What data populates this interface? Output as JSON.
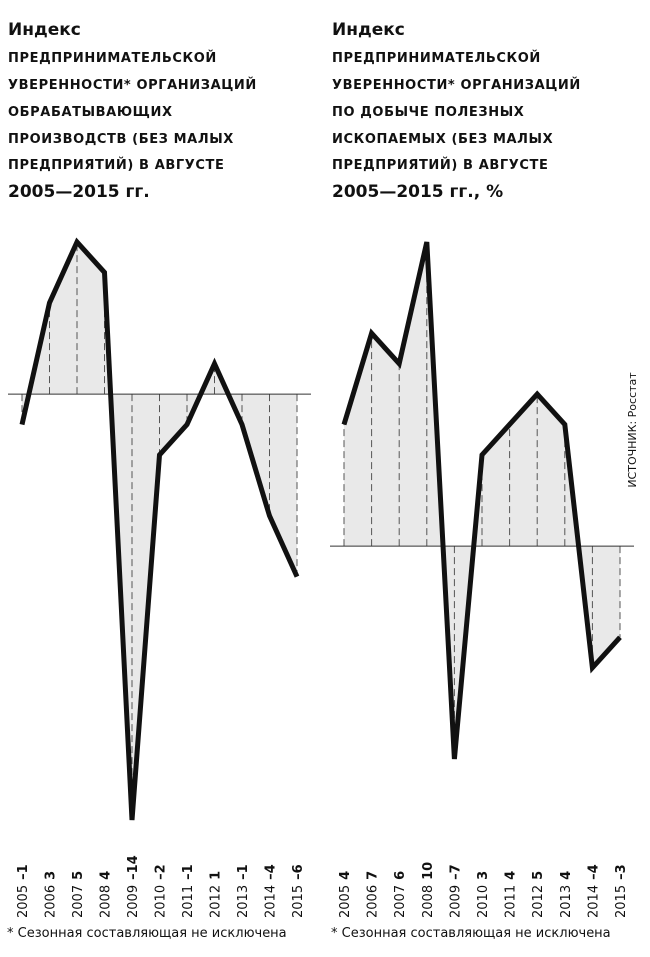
{
  "source": "ИСТОЧНИК: Росстат",
  "chart_data": [
    {
      "type": "line",
      "title": [
        "Индекс",
        "ПРЕДПРИНИМАТЕЛЬСКОЙ",
        "УВЕРЕННОСТИ* ОРГАНИЗАЦИЙ",
        "ОБРАБАТЫВАЮЩИХ",
        "ПРОИЗВОДСТВ (БЕЗ МАЛЫХ",
        "ПРЕДПРИЯТИЙ) В АВГУСТЕ",
        "2005—2015 гг."
      ],
      "categories": [
        "2005",
        "2006",
        "2007",
        "2008",
        "2009",
        "2010",
        "2011",
        "2012",
        "2013",
        "2014",
        "2015"
      ],
      "values": [
        -1,
        3,
        5,
        4,
        -14,
        -2,
        -1,
        1,
        -1,
        -4,
        -6
      ],
      "value_labels": [
        "–1",
        "3",
        "5",
        "4",
        "–14",
        "–2",
        "–1",
        "1",
        "–1",
        "–4",
        "–6"
      ],
      "ylim": [
        -14,
        5
      ],
      "color": "#111111",
      "footnote": "* Сезонная составляющая не исключена"
    },
    {
      "type": "line",
      "title": [
        "Индекс",
        "ПРЕДПРИНИМАТЕЛЬСКОЙ",
        "УВЕРЕННОСТИ* ОРГАНИЗАЦИЙ",
        "ПО ДОБЫЧЕ ПОЛЕЗНЫХ",
        "ИСКОПАЕМЫХ (БЕЗ МАЛЫХ",
        "ПРЕДПРИЯТИЙ) В АВГУСТЕ",
        "2005—2015 гг., %"
      ],
      "categories": [
        "2005",
        "2006",
        "2007",
        "2008",
        "2009",
        "2010",
        "2011",
        "2012",
        "2013",
        "2014",
        "2015"
      ],
      "values": [
        4,
        7,
        6,
        10,
        -7,
        3,
        4,
        5,
        4,
        -4,
        -3
      ],
      "value_labels": [
        "4",
        "7",
        "6",
        "10",
        "–7",
        "3",
        "4",
        "5",
        "4",
        "–4",
        "–3"
      ],
      "ylim": [
        -7,
        10
      ],
      "color": "#111111",
      "footnote": "* Сезонная составляющая не исключена"
    }
  ]
}
